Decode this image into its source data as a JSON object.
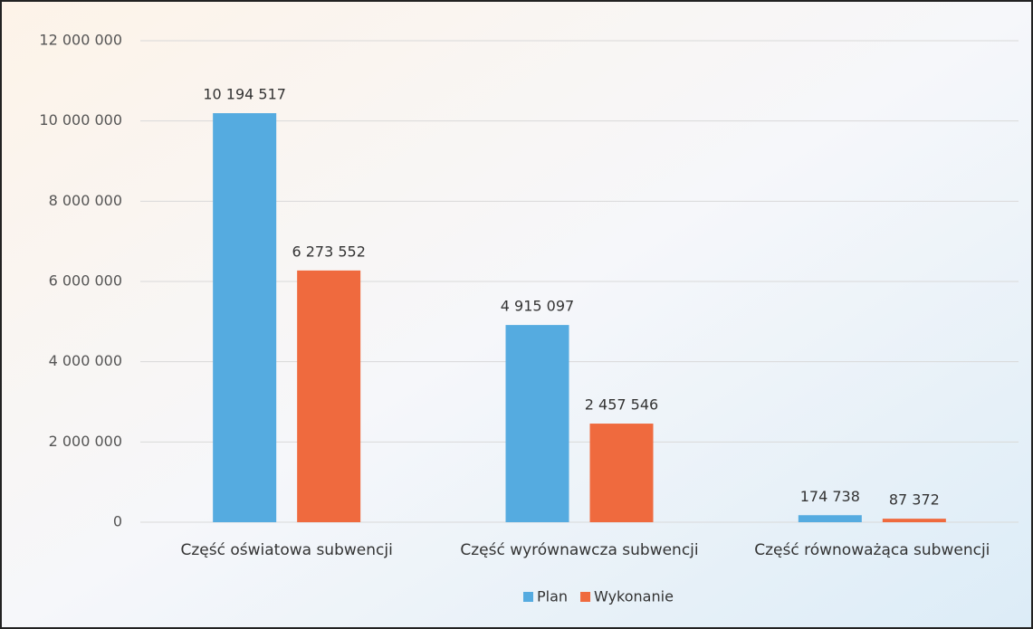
{
  "chart_data": {
    "type": "bar",
    "categories": [
      "Część oświatowa subwencji",
      "Część wyrównawcza subwencji",
      "Część równoważąca subwencji"
    ],
    "series": [
      {
        "name": "Plan",
        "color": "#55abe0",
        "values": [
          10194517,
          4915097,
          174738
        ],
        "value_labels": [
          "10 194 517",
          "4 915 097",
          "174 738"
        ]
      },
      {
        "name": "Wykonanie",
        "color": "#ef6a3e",
        "values": [
          6273552,
          2457546,
          87372
        ],
        "value_labels": [
          "6 273 552",
          "2 457 546",
          "87 372"
        ]
      }
    ],
    "ylim": [
      0,
      12000000
    ],
    "yticks": [
      0,
      {
        "value": 2000000,
        "label": "2 000 000"
      },
      {
        "value": 4000000,
        "label": "4 000 000"
      },
      {
        "value": 6000000,
        "label": "6 000 000"
      },
      {
        "value": 8000000,
        "label": "8 000 000"
      },
      {
        "value": 10000000,
        "label": "10 000 000"
      },
      {
        "value": 12000000,
        "label": "12 000 000"
      }
    ],
    "grid": true,
    "legend": "bottom"
  }
}
